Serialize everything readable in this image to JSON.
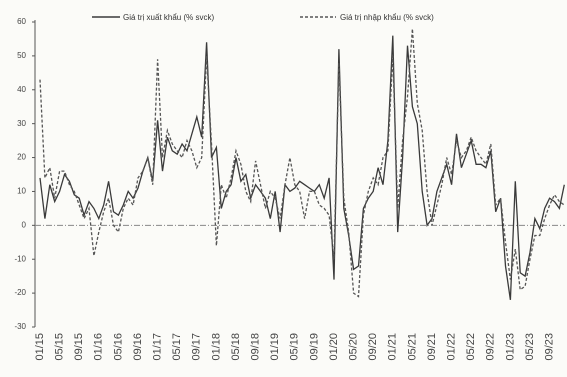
{
  "chart_data": {
    "type": "line",
    "categories": [
      "01/15",
      null,
      null,
      null,
      "05/15",
      null,
      null,
      null,
      "09/15",
      null,
      null,
      null,
      "01/16",
      null,
      null,
      null,
      "05/16",
      null,
      null,
      null,
      "09/16",
      null,
      null,
      null,
      "01/17",
      null,
      null,
      null,
      "05/17",
      null,
      null,
      null,
      "09/17",
      null,
      null,
      null,
      "01/18",
      null,
      null,
      null,
      "05/18",
      null,
      null,
      null,
      "09/18",
      null,
      null,
      null,
      "01/19",
      null,
      null,
      null,
      "05/19",
      null,
      null,
      null,
      "09/19",
      null,
      null,
      null,
      "01/20",
      null,
      null,
      null,
      "05/20",
      null,
      null,
      null,
      "09/20",
      null,
      null,
      null,
      "01/21",
      null,
      null,
      null,
      "05/21",
      null,
      null,
      null,
      "09/21",
      null,
      null,
      null,
      "01/22",
      null,
      null,
      null,
      "05/22",
      null,
      null,
      null,
      "09/22",
      null,
      null,
      null,
      "01/23",
      null,
      null,
      null,
      "05/23",
      null,
      null,
      null,
      "09/23",
      null,
      null,
      null
    ],
    "series": [
      {
        "name": "Giá trị xuất khẩu (% svck)",
        "color": "#3a3a3a",
        "dash": false,
        "values": [
          14,
          2,
          12,
          7,
          10,
          15,
          13,
          9,
          8,
          3,
          7,
          5,
          2,
          6,
          13,
          4,
          3,
          6,
          10,
          8,
          11,
          16,
          20,
          13,
          31,
          16,
          26,
          22,
          21,
          24,
          22,
          27,
          32,
          26,
          54,
          20,
          23,
          5,
          10,
          12,
          20,
          13,
          15,
          8,
          12,
          10,
          8,
          2,
          10,
          -2,
          12,
          10,
          11,
          13,
          12,
          11,
          10,
          12,
          8,
          14,
          -16,
          52,
          5,
          -3,
          -13,
          -12,
          5,
          8,
          10,
          17,
          12,
          25,
          56,
          -2,
          20,
          53,
          35,
          30,
          10,
          0,
          2,
          10,
          14,
          18,
          12,
          27,
          17,
          21,
          25,
          18,
          18,
          17,
          22,
          4,
          8,
          -12,
          -22,
          13,
          -14,
          -15,
          -8,
          2,
          -1,
          5,
          8,
          7,
          5,
          12
        ]
      },
      {
        "name": "Giá trị nhập khẩu (% svck)",
        "color": "#555555",
        "dash": true,
        "values": [
          43,
          14,
          17,
          8,
          16,
          16,
          12,
          10,
          6,
          2,
          5,
          -9,
          -2,
          4,
          8,
          0,
          -2,
          5,
          8,
          6,
          14,
          16,
          20,
          12,
          49,
          20,
          28,
          24,
          22,
          20,
          25,
          22,
          17,
          20,
          50,
          24,
          -6,
          12,
          8,
          14,
          22,
          18,
          10,
          7,
          19,
          12,
          5,
          10,
          8,
          2,
          12,
          20,
          12,
          10,
          2,
          10,
          10,
          6,
          5,
          3,
          -10,
          48,
          8,
          -2,
          -20,
          -21,
          3,
          10,
          14,
          12,
          20,
          22,
          50,
          5,
          25,
          38,
          58,
          36,
          28,
          10,
          0,
          6,
          12,
          20,
          15,
          25,
          20,
          22,
          26,
          22,
          20,
          18,
          24,
          6,
          8,
          -5,
          -16,
          -7,
          -19,
          -18,
          -10,
          -3,
          -3,
          2,
          6,
          9,
          7,
          6
        ]
      }
    ],
    "ylim": [
      -30,
      60
    ],
    "yticks": [
      -30,
      -20,
      -10,
      0,
      10,
      20,
      30,
      40,
      50,
      60
    ],
    "grid": false
  }
}
